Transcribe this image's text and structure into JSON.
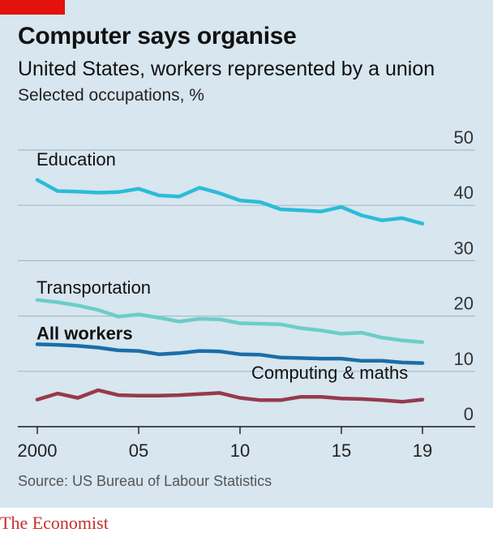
{
  "header": {
    "title": "Computer says organise",
    "subtitle": "United States, workers represented by a union",
    "description": "Selected occupations, %"
  },
  "footer": {
    "source": "Source: US Bureau of Labour Statistics",
    "brand": "The Economist"
  },
  "colors": {
    "background": "#d7e6ef",
    "brand_red": "#e3120b"
  },
  "chart_data": {
    "type": "line",
    "title": "Computer says organise",
    "subtitle": "United States, workers represented by a union",
    "ylabel": "Selected occupations, %",
    "xlabel": "",
    "xlim": [
      2000,
      2019
    ],
    "ylim": [
      0,
      50
    ],
    "y_ticks": [
      0,
      10,
      20,
      30,
      40,
      50
    ],
    "y_tick_labels": [
      "0",
      "10",
      "20",
      "30",
      "40",
      "50"
    ],
    "x_ticks": [
      2000,
      2005,
      2010,
      2015,
      2019
    ],
    "x_tick_labels": [
      "2000",
      "05",
      "10",
      "15",
      "19"
    ],
    "y_axis_side": "right",
    "grid": true,
    "x": [
      2000,
      2001,
      2002,
      2003,
      2004,
      2005,
      2006,
      2007,
      2008,
      2009,
      2010,
      2011,
      2012,
      2013,
      2014,
      2015,
      2016,
      2017,
      2018,
      2019
    ],
    "series": [
      {
        "name": "Education",
        "color": "#2bbcd8",
        "bold": false,
        "values": [
          44.6,
          42.6,
          42.5,
          42.3,
          42.4,
          43.0,
          41.8,
          41.6,
          43.2,
          42.2,
          40.9,
          40.6,
          39.3,
          39.1,
          38.9,
          39.7,
          38.2,
          37.3,
          37.7,
          36.7
        ]
      },
      {
        "name": "Transportation",
        "color": "#6ccdc8",
        "bold": false,
        "values": [
          22.9,
          22.5,
          21.9,
          21.1,
          19.9,
          20.3,
          19.7,
          19.0,
          19.5,
          19.4,
          18.7,
          18.6,
          18.5,
          17.8,
          17.4,
          16.8,
          17.0,
          16.1,
          15.6,
          15.3
        ]
      },
      {
        "name": "All workers",
        "color": "#1a6ea8",
        "bold": true,
        "values": [
          14.9,
          14.8,
          14.6,
          14.3,
          13.8,
          13.7,
          13.1,
          13.3,
          13.7,
          13.6,
          13.1,
          13.0,
          12.5,
          12.4,
          12.3,
          12.3,
          11.9,
          11.9,
          11.6,
          11.5
        ]
      },
      {
        "name": "Computing & maths",
        "color": "#963a4c",
        "bold": false,
        "values": [
          4.9,
          6.0,
          5.2,
          6.6,
          5.7,
          5.6,
          5.6,
          5.7,
          5.9,
          6.1,
          5.2,
          4.8,
          4.8,
          5.4,
          5.4,
          5.1,
          5.0,
          4.8,
          4.5,
          4.9
        ]
      }
    ]
  }
}
